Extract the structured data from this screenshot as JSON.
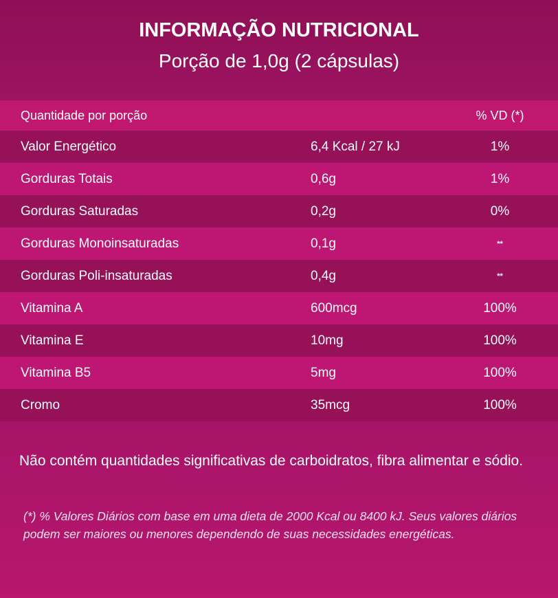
{
  "header": {
    "title": "INFORMAÇÃO NUTRICIONAL",
    "subtitle": "Porção de 1,0g (2 cápsulas)"
  },
  "table": {
    "head": {
      "name": "Quantidade por porção",
      "vd": "% VD (*)"
    },
    "rows": [
      {
        "name": "Valor Energético",
        "amount": "6,4 Kcal / 27 kJ",
        "vd": "1%"
      },
      {
        "name": "Gorduras Totais",
        "amount": "0,6g",
        "vd": "1%"
      },
      {
        "name": "Gorduras Saturadas",
        "amount": "0,2g",
        "vd": "0%"
      },
      {
        "name": "Gorduras Monoinsaturadas",
        "amount": "0,1g",
        "vd": "**"
      },
      {
        "name": "Gorduras Poli-insaturadas",
        "amount": "0,4g",
        "vd": "**"
      },
      {
        "name": "Vitamina A",
        "amount": "600mcg",
        "vd": "100%"
      },
      {
        "name": "Vitamina E",
        "amount": "10mg",
        "vd": "100%"
      },
      {
        "name": "Vitamina B5",
        "amount": "5mg",
        "vd": "100%"
      },
      {
        "name": "Cromo",
        "amount": "35mcg",
        "vd": "100%"
      }
    ]
  },
  "note": "Não contém quantidades significativas de carboidratos, fibra alimentar e sódio.",
  "footnote": "(*) % Valores Diários com base em uma dieta de 2000 Kcal ou 8400 kJ. Seus valores diários podem ser maiores ou menores dependendo de suas necessidades energéticas.",
  "colors": {
    "row_light": "#bd1673",
    "row_dark": "#961158",
    "background_top": "#8e0f55",
    "background_bottom": "#b8166f"
  }
}
